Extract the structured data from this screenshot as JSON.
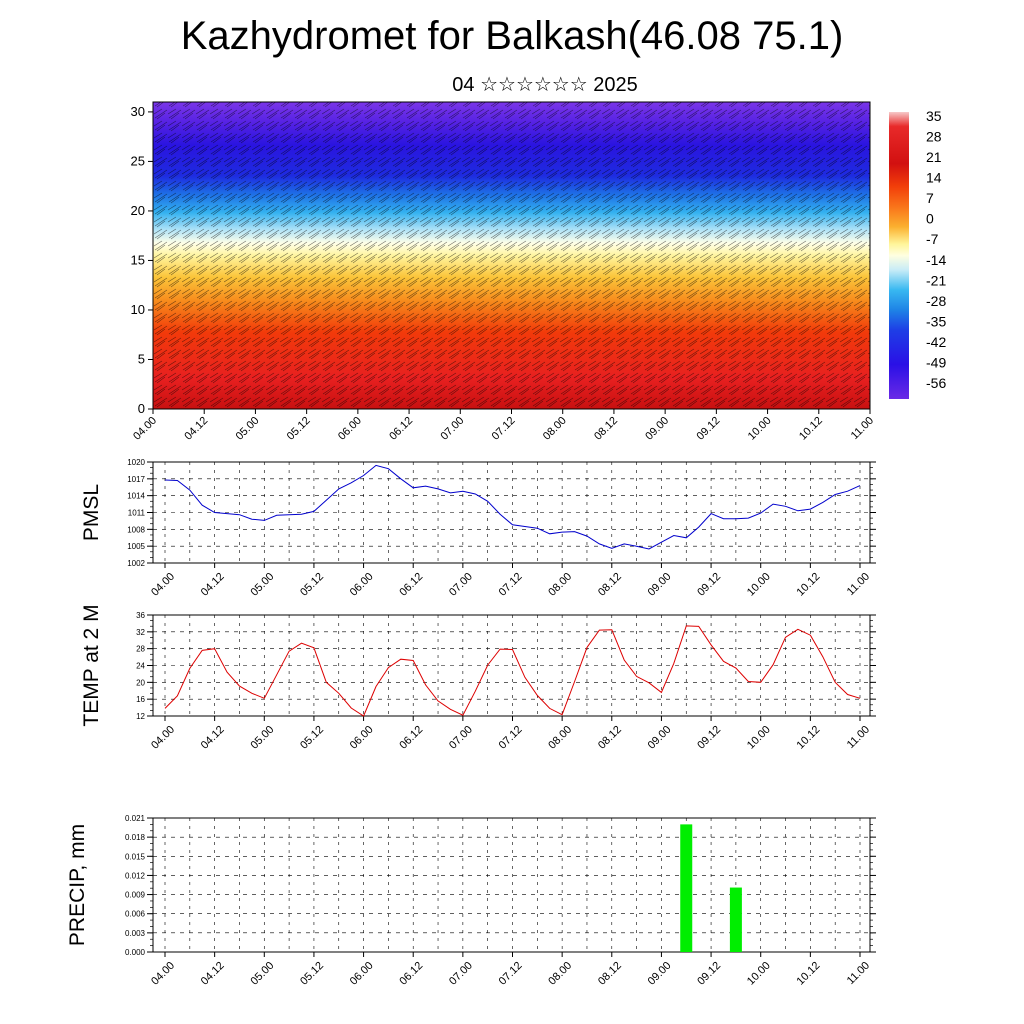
{
  "title": "Kazhydromet for Balkash(46.08 75.1)",
  "subtitle": "04 ☆☆☆☆☆☆ 2025",
  "colors": {
    "pmsl_line": "#0000cc",
    "temp_line": "#dd0000",
    "precip_bar": "#00ee00",
    "colorbar": [
      "#f7c8c8",
      "#e82a2a",
      "#d21010",
      "#f23f0a",
      "#f9741a",
      "#fbb02f",
      "#fff59a",
      "#ffffe0",
      "#c8ecf7",
      "#38b8f1",
      "#1e83e6",
      "#1e3ee6",
      "#2a10e6",
      "#6a2ae6"
    ]
  },
  "chart_data": [
    {
      "type": "heatmap",
      "name": "cross-section",
      "x_ticks": [
        "04.00",
        "04.12",
        "05.00",
        "05.12",
        "06.00",
        "06.12",
        "07.00",
        "07.12",
        "08.00",
        "08.12",
        "09.00",
        "09.12",
        "10.00",
        "10.12",
        "11.00"
      ],
      "y_ticks": [
        "0",
        "5",
        "10",
        "15",
        "20",
        "25",
        "30"
      ],
      "ylim": [
        0,
        31
      ],
      "colorbar_labels": [
        "35",
        "28",
        "21",
        "14",
        "7",
        "0",
        "-7",
        "-14",
        "-21",
        "-28",
        "-35",
        "-42",
        "-49",
        "-56"
      ],
      "zlim": [
        -63,
        42
      ]
    },
    {
      "type": "line",
      "name": "pmsl",
      "ylabel": "PMSL",
      "x_ticks": [
        "04.00",
        "04.12",
        "05.00",
        "05.12",
        "06.00",
        "06.12",
        "07.00",
        "07.12",
        "08.00",
        "08.12",
        "09.00",
        "09.12",
        "10.00",
        "10.12",
        "11.00"
      ],
      "y_ticks": [
        "1020",
        "1017",
        "1014",
        "1011",
        "1008",
        "1005",
        "1002"
      ],
      "ylim": [
        1002,
        1020
      ],
      "values": [
        1016.8,
        1016.7,
        1015,
        1012.3,
        1011,
        1010.8,
        1010.6,
        1009.8,
        1009.6,
        1010.5,
        1010.6,
        1010.7,
        1011.2,
        1013.2,
        1015.2,
        1016.3,
        1017.6,
        1019.4,
        1018.8,
        1017,
        1015.4,
        1015.7,
        1015.2,
        1014.5,
        1014.8,
        1014.3,
        1013,
        1010.7,
        1008.8,
        1008.5,
        1008.2,
        1007.2,
        1007.5,
        1007.6,
        1006.8,
        1005.4,
        1004.6,
        1005.4,
        1005,
        1004.5,
        1005.7,
        1006.9,
        1006.5,
        1008.4,
        1010.8,
        1009.9,
        1009.9,
        1010,
        1010.9,
        1012.5,
        1012.1,
        1011.3,
        1011.6,
        1012.8,
        1014.2,
        1014.8,
        1015.8
      ]
    },
    {
      "type": "line",
      "name": "temp",
      "ylabel": "TEMP at 2 M",
      "x_ticks": [
        "04.00",
        "04.12",
        "05.00",
        "05.12",
        "06.00",
        "06.12",
        "07.00",
        "07.12",
        "08.00",
        "08.12",
        "09.00",
        "09.12",
        "10.00",
        "10.12",
        "11.00"
      ],
      "y_ticks": [
        "36",
        "32",
        "28",
        "24",
        "20",
        "16",
        "12"
      ],
      "ylim": [
        12,
        36
      ],
      "values": [
        13.8,
        16.8,
        23.3,
        27.6,
        28,
        22.4,
        19.1,
        17.4,
        16.2,
        21.8,
        27.4,
        29.3,
        28.2,
        20,
        17.4,
        13.9,
        12,
        19,
        23.5,
        25.5,
        25.2,
        19.4,
        15.6,
        13.6,
        12.2,
        17.9,
        24.1,
        27.9,
        27.8,
        21.2,
        16.9,
        13.8,
        12.3,
        20.2,
        28.3,
        32.4,
        32.5,
        25.3,
        21.4,
        19.9,
        17.6,
        24.5,
        33.4,
        33.3,
        28.9,
        25,
        23.4,
        20.2,
        20,
        24.2,
        30.7,
        32.6,
        31.2,
        26.1,
        20,
        17.1,
        16.2
      ]
    },
    {
      "type": "bar",
      "name": "precip",
      "ylabel": "PRECIP, mm",
      "x_ticks": [
        "04.00",
        "04.12",
        "05.00",
        "05.12",
        "06.00",
        "06.12",
        "07.00",
        "07.12",
        "08.00",
        "08.12",
        "09.00",
        "09.12",
        "10.00",
        "10.12",
        "11.00"
      ],
      "y_ticks": [
        "0.021",
        "0.018",
        "0.015",
        "0.012",
        "0.009",
        "0.006",
        "0.003",
        "0.000"
      ],
      "ylim": [
        0,
        0.021
      ],
      "bars": [
        {
          "x": "09.06",
          "value": 0.02
        },
        {
          "x": "09.18",
          "value": 0.0101
        }
      ]
    }
  ]
}
